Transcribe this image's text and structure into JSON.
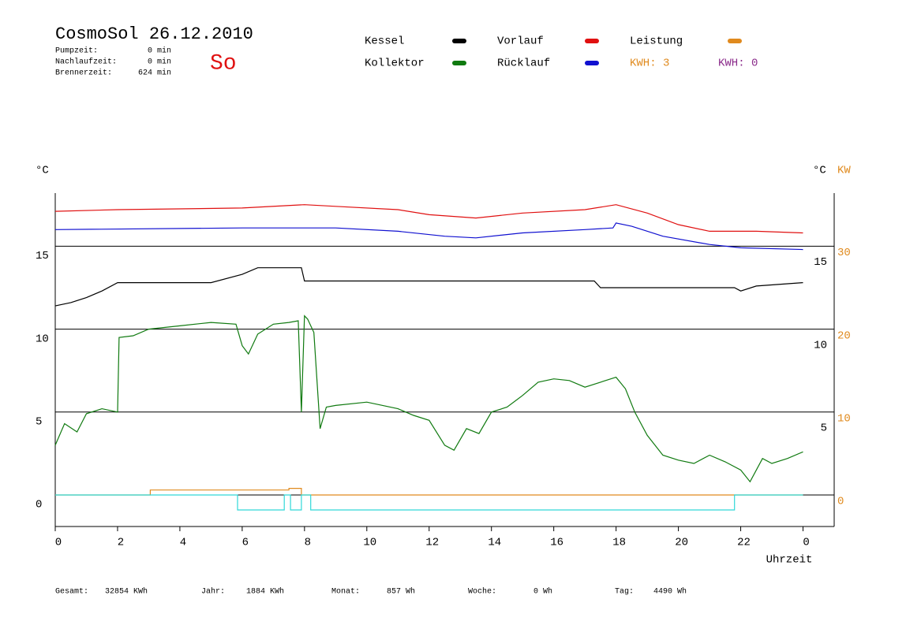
{
  "header": {
    "title": "CosmoSol 26.12.2010",
    "day": "So",
    "stats": [
      [
        "Pumpzeit:",
        "0 min"
      ],
      [
        "Nachlaufzeit:",
        "0 min"
      ],
      [
        "Brennerzeit:",
        "624 min"
      ]
    ],
    "kwh": [
      "KWH: 3",
      "KWH: 0"
    ]
  },
  "footer": [
    [
      "Gesamt:",
      "32854 KWh"
    ],
    [
      "Jahr:",
      "1884 KWh"
    ],
    [
      "Monat:",
      "857 Wh"
    ],
    [
      "Woche:",
      "0 Wh"
    ],
    [
      "Tag:",
      "4490 Wh"
    ]
  ],
  "chart_data": {
    "type": "line",
    "xlabel": "Uhrzeit",
    "ylabel": "°C",
    "y2label": "°C",
    "y2unit": "KW",
    "xlim": [
      0,
      25
    ],
    "xticks": [
      0,
      2,
      4,
      6,
      8,
      10,
      12,
      14,
      16,
      18,
      20,
      22,
      {
        "value": 24,
        "label": "0"
      }
    ],
    "ylim": [
      -1.9,
      18.2
    ],
    "yticks": [
      0,
      5,
      10,
      15
    ],
    "right_celsius_ticks": [
      5,
      10,
      15
    ],
    "y2lim": [
      -3.8,
      36.4
    ],
    "y2ticks": [
      0,
      10,
      20,
      30
    ],
    "y2color": "#e08a1e",
    "grid": true,
    "series": [
      {
        "name": "Kessel",
        "color": "#000000",
        "x": [
          0,
          0.5,
          1,
          1.5,
          2,
          5,
          6,
          6.5,
          7.9,
          8,
          17.3,
          17.5,
          21.8,
          22,
          22.5,
          24
        ],
        "values": [
          11.4,
          11.6,
          11.9,
          12.3,
          12.8,
          12.8,
          13.3,
          13.7,
          13.7,
          12.9,
          12.9,
          12.5,
          12.5,
          12.3,
          12.6,
          12.8
        ]
      },
      {
        "name": "Kollektor",
        "color": "#107a10",
        "x": [
          0,
          0.3,
          0.7,
          1,
          1.5,
          2,
          2.05,
          2.5,
          3,
          4,
          5,
          5.8,
          6,
          6.2,
          6.5,
          7,
          7.5,
          7.8,
          7.9,
          8,
          8.1,
          8.3,
          8.5,
          8.7,
          9,
          10,
          11,
          11.5,
          12,
          12.5,
          12.8,
          13.2,
          13.6,
          14,
          14.5,
          15,
          15.5,
          16,
          16.5,
          17,
          17.5,
          18,
          18.3,
          18.6,
          19,
          19.5,
          20,
          20.5,
          21,
          21.5,
          22,
          22.3,
          22.7,
          23,
          23.5,
          24
        ],
        "values": [
          3,
          4.3,
          3.8,
          4.9,
          5.2,
          5.0,
          9.5,
          9.6,
          10.0,
          10.2,
          10.4,
          10.3,
          9.0,
          8.5,
          9.7,
          10.3,
          10.4,
          10.5,
          5.0,
          10.8,
          10.6,
          9.8,
          4.0,
          5.3,
          5.4,
          5.6,
          5.2,
          4.8,
          4.5,
          3.0,
          2.7,
          4.0,
          3.7,
          5.0,
          5.3,
          6.0,
          6.8,
          7.0,
          6.9,
          6.5,
          6.8,
          7.1,
          6.4,
          5.0,
          3.6,
          2.4,
          2.1,
          1.9,
          2.4,
          2.0,
          1.5,
          0.8,
          2.2,
          1.9,
          2.2,
          2.6
        ]
      },
      {
        "name": "Vorlauf",
        "color": "#e01010",
        "x": [
          0,
          2,
          6,
          8,
          9,
          11,
          12,
          13.5,
          15,
          17,
          18,
          19,
          20,
          21,
          22.5,
          24
        ],
        "values": [
          17.1,
          17.2,
          17.3,
          17.5,
          17.4,
          17.2,
          16.9,
          16.7,
          17.0,
          17.2,
          17.5,
          17.0,
          16.3,
          15.9,
          15.9,
          15.8
        ]
      },
      {
        "name": "Rücklauf",
        "color": "#1010d0",
        "x": [
          0,
          6,
          9,
          11,
          12.5,
          13.5,
          15,
          17,
          17.9,
          18,
          18.5,
          19.5,
          21,
          22,
          24
        ],
        "values": [
          16.0,
          16.1,
          16.1,
          15.9,
          15.6,
          15.5,
          15.8,
          16.0,
          16.1,
          16.4,
          16.2,
          15.6,
          15.1,
          14.9,
          14.8
        ]
      },
      {
        "name": "Leistung",
        "color": "#e08a1e",
        "axis": "y2",
        "x": [
          0,
          3.05,
          3.05,
          7.5,
          7.5,
          7.9,
          7.9,
          24
        ],
        "values": [
          0,
          0,
          0.6,
          0.6,
          0.8,
          0.8,
          0,
          0
        ]
      },
      {
        "color": "#30d8d8",
        "x": [
          0,
          5.85,
          5.85,
          7.35,
          7.35,
          7.55,
          7.55,
          7.9,
          7.9,
          8.2,
          8.2,
          21.8,
          21.8,
          24
        ],
        "values": [
          0,
          0,
          -0.9,
          -0.9,
          0,
          0,
          -0.9,
          -0.9,
          0,
          0,
          -0.9,
          -0.9,
          0,
          0
        ]
      }
    ]
  }
}
